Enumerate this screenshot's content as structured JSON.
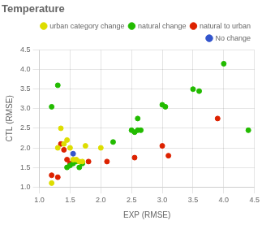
{
  "chart_data": {
    "type": "scatter",
    "title": "Temperature",
    "xlabel": "EXP (RMSE)",
    "ylabel": "CTL (RMSE)",
    "xlim": [
      1.0,
      4.5
    ],
    "ylim": [
      1.0,
      4.5
    ],
    "xticks": [
      {
        "value": 1.0,
        "label": "1.0"
      },
      1.5,
      {
        "value": 2.0,
        "label": "2.0"
      },
      2.5,
      {
        "value": 3.0,
        "label": "3.0"
      },
      3.5,
      {
        "value": 4.0,
        "label": "4.0"
      },
      4.5
    ],
    "yticks": [
      {
        "value": 1.0,
        "label": "1.0"
      },
      1.5,
      {
        "value": 2.0,
        "label": "2.0"
      },
      2.5,
      {
        "value": 3.0,
        "label": "3.0"
      },
      3.5,
      {
        "value": 4.0,
        "label": "4.0"
      },
      4.5
    ],
    "series": [
      {
        "name": "urban category change",
        "color": "#dddd00",
        "x": [
          1.2,
          1.3,
          1.35,
          1.4,
          1.45,
          1.5,
          1.55,
          1.6,
          1.65,
          1.7,
          1.75,
          2.0
        ],
        "values": [
          1.1,
          2.0,
          2.5,
          2.1,
          2.2,
          2.0,
          1.7,
          1.7,
          1.65,
          1.65,
          2.05,
          2.0
        ]
      },
      {
        "name": "natural change",
        "color": "#22bb00",
        "x": [
          1.2,
          1.3,
          1.45,
          1.5,
          1.55,
          1.6,
          1.65,
          1.7,
          2.2,
          2.5,
          2.55,
          2.6,
          2.6,
          2.65,
          3.0,
          3.05,
          3.5,
          3.6,
          4.0,
          4.4
        ],
        "values": [
          3.05,
          3.6,
          1.5,
          1.55,
          1.6,
          1.65,
          1.5,
          1.6,
          2.15,
          2.45,
          2.4,
          2.75,
          2.45,
          2.45,
          3.1,
          3.05,
          3.5,
          3.45,
          4.15,
          2.45
        ]
      },
      {
        "name": "natural to urban",
        "color": "#dd2200",
        "x": [
          1.2,
          1.3,
          1.35,
          1.4,
          1.45,
          1.5,
          1.55,
          1.8,
          2.1,
          2.55,
          3.0,
          3.1,
          3.9
        ],
        "values": [
          1.3,
          1.25,
          2.1,
          1.95,
          1.7,
          1.6,
          1.65,
          1.65,
          1.65,
          1.75,
          2.05,
          1.8,
          2.75
        ]
      },
      {
        "name": "No change",
        "color": "#3355cc",
        "x": [
          1.55
        ],
        "values": [
          1.85
        ]
      }
    ],
    "grid": true,
    "legend": "upper right"
  }
}
